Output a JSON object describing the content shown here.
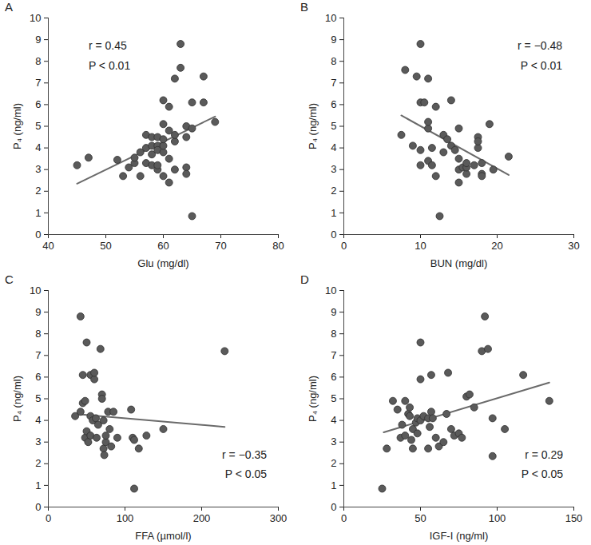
{
  "chart_data": [
    {
      "type": "scatter",
      "title": "A",
      "x_label": "Glu (mg/dl)",
      "y_label": "P₄ (ng/ml)",
      "xlim": [
        40,
        80
      ],
      "xticks": [
        40,
        50,
        60,
        70,
        80
      ],
      "ylim": [
        0,
        10
      ],
      "yticks": [
        0,
        1,
        2,
        3,
        4,
        5,
        6,
        7,
        8,
        9,
        10
      ],
      "grid": false,
      "marker": "circle",
      "color": "#5a5a5a",
      "x": [
        45,
        47,
        52,
        53,
        54,
        55,
        55,
        56,
        56,
        57,
        57,
        57,
        58,
        58,
        58,
        58,
        59,
        59,
        59,
        59,
        59,
        60,
        60,
        60,
        60,
        60,
        60,
        61,
        61,
        61,
        61,
        62,
        62,
        62,
        62,
        63,
        63,
        64,
        64,
        64,
        64,
        65,
        65,
        65,
        67,
        67,
        69
      ],
      "y": [
        3.2,
        3.55,
        3.45,
        2.7,
        3.1,
        3.3,
        3.55,
        2.7,
        3.8,
        4.0,
        3.3,
        4.6,
        3.2,
        3.7,
        4.1,
        4.5,
        3.0,
        3.2,
        4.1,
        3.9,
        4.5,
        2.7,
        3.8,
        4.1,
        5.1,
        6.2,
        4.4,
        2.4,
        4.8,
        5.9,
        3.5,
        3.0,
        4.3,
        4.6,
        7.2,
        7.7,
        8.8,
        5.0,
        3.1,
        2.8,
        4.5,
        0.85,
        6.1,
        4.9,
        6.1,
        7.3,
        5.2
      ],
      "trend": {
        "x": [
          45,
          69
        ],
        "y": [
          2.35,
          5.45
        ]
      },
      "annotations": [
        {
          "text": "r = 0.45",
          "x": 47,
          "y": 8.7
        },
        {
          "text": "P < 0.01",
          "x": 47,
          "y": 7.8
        }
      ]
    },
    {
      "type": "scatter",
      "title": "B",
      "x_label": "BUN (mg/dl)",
      "y_label": "P₄ (ng/ml)",
      "xlim": [
        0,
        30
      ],
      "xticks": [
        0,
        10,
        20,
        30
      ],
      "ylim": [
        0,
        10
      ],
      "yticks": [
        0,
        1,
        2,
        3,
        4,
        5,
        6,
        7,
        8,
        9,
        10
      ],
      "grid": false,
      "marker": "circle",
      "color": "#5a5a5a",
      "x": [
        7.5,
        8,
        9,
        9.5,
        10,
        10,
        10,
        10,
        10.5,
        11,
        11,
        11,
        11,
        11.5,
        11.5,
        12,
        12,
        12.5,
        13,
        13,
        13.5,
        14,
        14,
        14.5,
        15,
        15,
        15,
        15,
        15.5,
        16,
        16,
        16,
        17,
        17.5,
        17.5,
        17.5,
        18,
        18,
        18,
        19,
        19.5,
        21.5
      ],
      "y": [
        4.6,
        7.6,
        4.1,
        7.3,
        3.2,
        6.1,
        8.8,
        3.9,
        6.1,
        7.2,
        4.9,
        5.2,
        3.4,
        4.0,
        3.2,
        5.9,
        2.7,
        0.85,
        3.8,
        4.6,
        4.4,
        6.2,
        4.1,
        3.9,
        3.0,
        3.5,
        4.9,
        2.4,
        3.1,
        2.8,
        3.1,
        3.3,
        3.2,
        4.5,
        4.0,
        4.3,
        2.8,
        2.7,
        3.3,
        5.1,
        3.0,
        3.6
      ],
      "trend": {
        "x": [
          7.5,
          21.5
        ],
        "y": [
          5.5,
          2.75
        ]
      },
      "annotations": [
        {
          "text": "r = −0.48",
          "x": 28.5,
          "y": 8.7
        },
        {
          "text": "P < 0.01",
          "x": 28.5,
          "y": 7.8
        }
      ]
    },
    {
      "type": "scatter",
      "title": "C",
      "x_label": "FFA (µmol/l)",
      "y_label": "P₄ (ng/ml)",
      "xlim": [
        0,
        300
      ],
      "xticks": [
        0,
        100,
        200,
        300
      ],
      "ylim": [
        0,
        10
      ],
      "yticks": [
        0,
        1,
        2,
        3,
        4,
        5,
        6,
        7,
        8,
        9,
        10
      ],
      "grid": false,
      "marker": "circle",
      "color": "#5a5a5a",
      "x": [
        35,
        42,
        42,
        45,
        45,
        48,
        48,
        50,
        50,
        52,
        55,
        55,
        55,
        58,
        60,
        60,
        62,
        63,
        65,
        68,
        70,
        70,
        72,
        72,
        73,
        75,
        75,
        78,
        80,
        82,
        85,
        90,
        108,
        110,
        112,
        112,
        118,
        128,
        150,
        230
      ],
      "y": [
        4.2,
        8.8,
        4.4,
        6.1,
        4.8,
        4.9,
        3.2,
        7.6,
        3.5,
        3.0,
        4.2,
        6.1,
        3.3,
        4.0,
        5.9,
        6.2,
        4.1,
        3.2,
        3.8,
        7.3,
        5.2,
        5.0,
        4.0,
        2.7,
        2.4,
        3.0,
        3.3,
        4.4,
        3.6,
        2.8,
        4.4,
        3.2,
        4.5,
        3.2,
        3.1,
        0.85,
        2.7,
        3.3,
        3.6,
        7.2
      ],
      "trend": {
        "x": [
          35,
          230
        ],
        "y": [
          4.3,
          3.7
        ]
      },
      "annotations": [
        {
          "text": "r = −0.35",
          "x": 285,
          "y": 2.4
        },
        {
          "text": "P < 0.05",
          "x": 285,
          "y": 1.5
        }
      ]
    },
    {
      "type": "scatter",
      "title": "D",
      "x_label": "IGF-I (ng/ml)",
      "y_label": "P₄ (ng/ml)",
      "xlim": [
        0,
        150
      ],
      "xticks": [
        0,
        50,
        100,
        150
      ],
      "ylim": [
        0,
        10
      ],
      "yticks": [
        0,
        1,
        2,
        3,
        4,
        5,
        6,
        7,
        8,
        9,
        10
      ],
      "grid": false,
      "marker": "circle",
      "color": "#5a5a5a",
      "x": [
        25,
        28,
        32,
        35,
        37,
        38,
        40,
        40,
        42,
        43,
        43,
        44,
        45,
        45,
        47,
        48,
        48,
        50,
        50,
        50,
        52,
        55,
        55,
        56,
        57,
        57,
        58,
        60,
        62,
        65,
        67,
        68,
        70,
        72,
        75,
        77,
        80,
        82,
        85,
        90,
        92,
        94,
        97,
        97,
        105,
        117,
        134
      ],
      "y": [
        0.85,
        2.7,
        4.9,
        4.5,
        3.2,
        3.8,
        4.9,
        3.3,
        4.3,
        4.2,
        4.6,
        3.1,
        3.6,
        2.7,
        3.9,
        4.1,
        3.4,
        7.6,
        4.0,
        5.9,
        4.2,
        4.1,
        2.7,
        3.7,
        6.1,
        4.4,
        4.1,
        3.2,
        2.8,
        3.0,
        4.3,
        6.2,
        3.6,
        3.3,
        3.4,
        3.2,
        5.1,
        5.2,
        4.6,
        7.2,
        8.8,
        7.3,
        2.35,
        4.1,
        3.6,
        6.1,
        4.9
      ],
      "trend": {
        "x": [
          26,
          134
        ],
        "y": [
          3.45,
          5.75
        ]
      },
      "annotations": [
        {
          "text": "r = 0.29",
          "x": 143,
          "y": 2.4
        },
        {
          "text": "P < 0.05",
          "x": 143,
          "y": 1.5
        }
      ]
    }
  ]
}
